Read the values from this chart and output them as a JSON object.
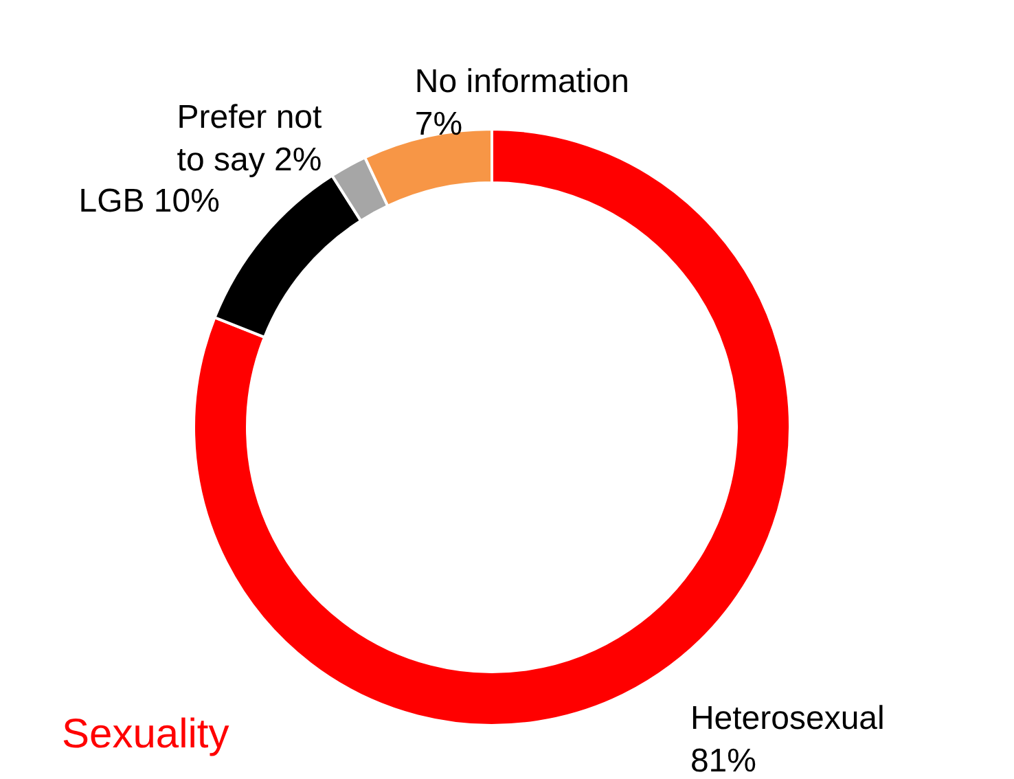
{
  "chart_data": {
    "type": "donut",
    "title": "Sexuality",
    "categories": [
      "Heterosexual",
      "LGB",
      "Prefer not to say",
      "No information"
    ],
    "values": [
      81,
      10,
      2,
      7
    ],
    "colors": [
      "#ff0000",
      "#000000",
      "#a6a6a6",
      "#f79646"
    ],
    "value_labels": [
      "81%",
      "10%",
      "2%",
      "7%"
    ]
  }
}
